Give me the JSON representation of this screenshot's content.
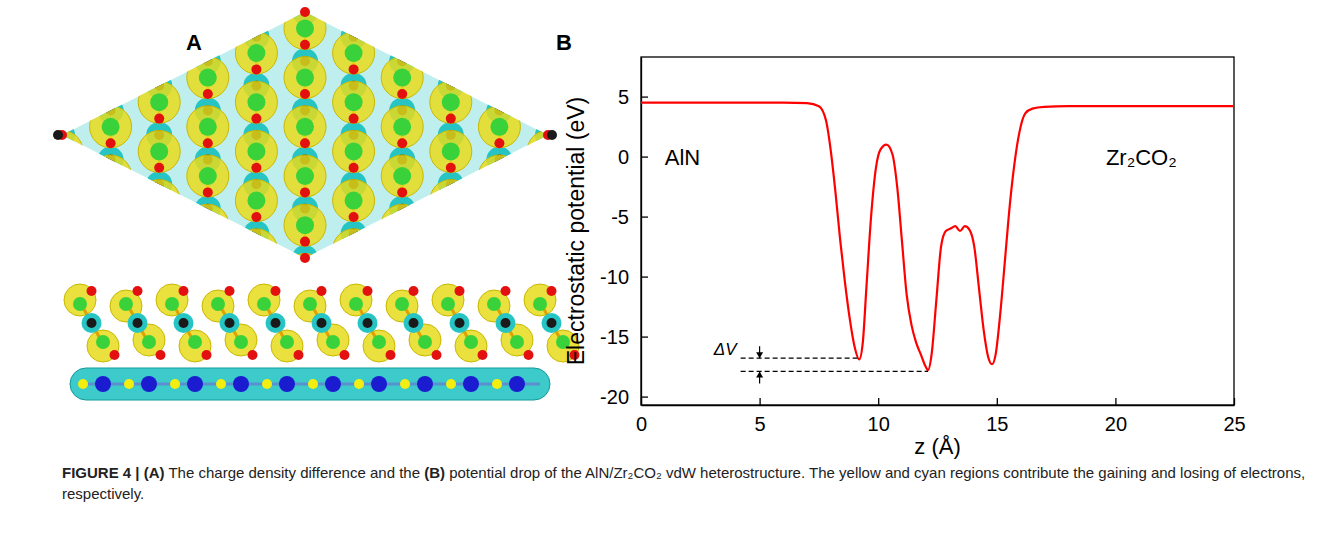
{
  "chart_data": {
    "type": "line",
    "x": [
      0,
      6,
      7.0,
      7.5,
      7.8,
      8.0,
      8.2,
      8.4,
      8.6,
      8.8,
      9.0,
      9.2,
      9.35,
      9.5,
      9.7,
      9.9,
      10.1,
      10.35,
      10.6,
      10.8,
      11.0,
      11.2,
      11.4,
      11.6,
      11.8,
      12.0,
      12.1,
      12.25,
      12.45,
      12.65,
      12.85,
      13.05,
      13.25,
      13.45,
      13.65,
      13.85,
      14.05,
      14.25,
      14.45,
      14.65,
      14.8,
      14.95,
      15.15,
      15.35,
      15.55,
      15.75,
      15.95,
      16.2,
      16.5,
      17.0,
      18,
      20,
      25
    ],
    "values": [
      4.5,
      4.5,
      4.45,
      4.2,
      3.0,
      0.5,
      -3,
      -7,
      -10.5,
      -13.5,
      -15.8,
      -16.9,
      -15.5,
      -11,
      -5,
      -1,
      0.6,
      1.0,
      0.2,
      -2.5,
      -7,
      -11.5,
      -14,
      -15.5,
      -16.5,
      -17.5,
      -17.8,
      -16.5,
      -12,
      -7.5,
      -6.2,
      -6.0,
      -5.8,
      -6.2,
      -5.8,
      -6.1,
      -7.5,
      -11,
      -14.5,
      -16.8,
      -17.3,
      -16.5,
      -13,
      -8.5,
      -4,
      -0.5,
      2,
      3.6,
      4.0,
      4.15,
      4.2,
      4.2,
      4.2
    ],
    "color": "#ff0000",
    "xlabel": "z (Å)",
    "ylabel": "Electrostatic potential (eV)",
    "xlim": [
      0,
      25
    ],
    "xticks": [
      0,
      5,
      10,
      15,
      20,
      25
    ],
    "ylim": [
      -20.7,
      8.3
    ],
    "yticks": [
      -20,
      -15,
      -10,
      -5,
      0,
      5
    ],
    "grid": false,
    "annotations": [
      {
        "text": "AlN"
      },
      {
        "text": "Zr₂CO₂"
      },
      {
        "text": "ΔV",
        "x": [
          9.2,
          12.1
        ],
        "y": [
          -16.8,
          -17.9
        ]
      }
    ]
  },
  "panels": {
    "a": "A",
    "b": "B"
  },
  "caption": {
    "label": "FIGURE 4 |",
    "segments": [
      "(A)",
      " The charge density difference and the ",
      "(B)",
      " potential drop of the AlN/Zr₂CO₂ vdW heterostructure. The yellow and cyan regions contribute the gaining and losing of electrons, respectively."
    ]
  }
}
